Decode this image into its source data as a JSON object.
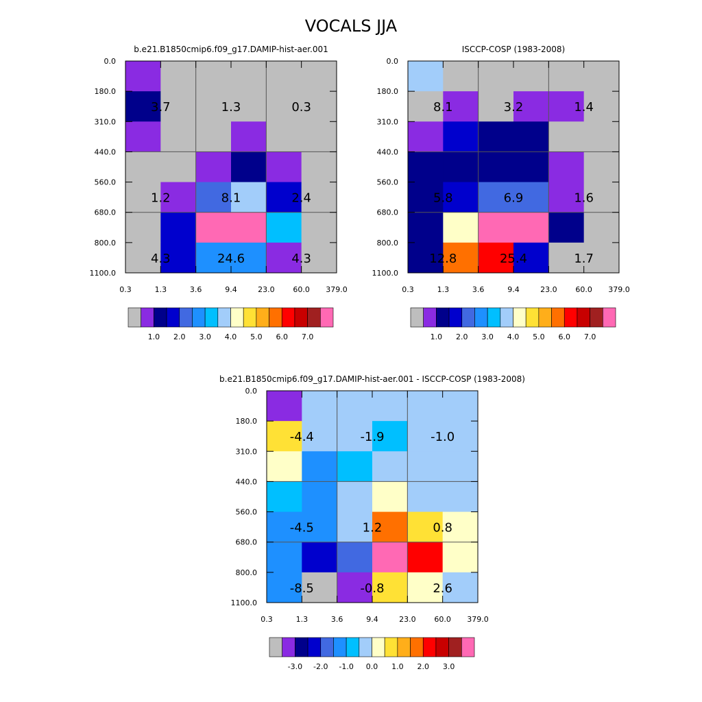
{
  "title": "VOCALS JJA",
  "x_tick_labels": [
    "0.3",
    "1.3",
    "3.6",
    "9.4",
    "23.0",
    "60.0",
    "379.0"
  ],
  "y_tick_labels": [
    "0.0",
    "180.0",
    "310.0",
    "440.0",
    "560.0",
    "680.0",
    "800.0",
    "1100.0"
  ],
  "palettes": {
    "abs": [
      "#bebebe",
      "#8a2be2",
      "#00008b",
      "#0000cd",
      "#4169e1",
      "#1e90ff",
      "#00bfff",
      "#a2cdfa",
      "#ffffc8",
      "#ffe135",
      "#ffae1a",
      "#ff7000",
      "#ff0000",
      "#c80000",
      "#a02020",
      "#ff69b4"
    ],
    "diff": [
      "#bebebe",
      "#8a2be2",
      "#00008b",
      "#0000cd",
      "#4169e1",
      "#1e90ff",
      "#00bfff",
      "#a2cdfa",
      "#ffffc8",
      "#ffe135",
      "#ffae1a",
      "#ff7000",
      "#ff0000",
      "#c80000",
      "#a02020",
      "#ff69b4"
    ]
  },
  "chart_data": [
    {
      "type": "heatmap",
      "title": "b.e21.B1850cmip6.f09_g17.DAMIP-hist-aer.001",
      "palette": "abs",
      "colorbar_labels": [
        "1.0",
        "2.0",
        "3.0",
        "4.0",
        "5.0",
        "6.0",
        "7.0"
      ],
      "cells": [
        [
          1,
          0,
          0,
          0,
          0,
          0
        ],
        [
          2,
          0,
          0,
          0,
          0,
          0
        ],
        [
          1,
          0,
          0,
          1,
          0,
          0
        ],
        [
          0,
          0,
          1,
          2,
          1,
          0
        ],
        [
          0,
          1,
          4,
          7,
          3,
          0
        ],
        [
          0,
          3,
          15,
          15,
          6,
          0
        ],
        [
          0,
          3,
          5,
          5,
          1,
          0
        ]
      ],
      "annotations": [
        {
          "row": 1,
          "col": 0,
          "text": "3.7"
        },
        {
          "row": 1,
          "col": 2,
          "text": "1.3"
        },
        {
          "row": 1,
          "col": 4,
          "text": "0.3"
        },
        {
          "row": 4,
          "col": 0,
          "text": "1.2"
        },
        {
          "row": 4,
          "col": 2,
          "text": "8.1"
        },
        {
          "row": 4,
          "col": 4,
          "text": "2.4"
        },
        {
          "row": 6,
          "col": 0,
          "text": "4.3"
        },
        {
          "row": 6,
          "col": 2,
          "text": "24.6"
        },
        {
          "row": 6,
          "col": 4,
          "text": "4.3"
        }
      ]
    },
    {
      "type": "heatmap",
      "title": "ISCCP-COSP (1983-2008)",
      "palette": "abs",
      "colorbar_labels": [
        "1.0",
        "2.0",
        "3.0",
        "4.0",
        "5.0",
        "6.0",
        "7.0"
      ],
      "cells": [
        [
          7,
          0,
          0,
          0,
          0,
          0
        ],
        [
          0,
          1,
          0,
          1,
          1,
          0
        ],
        [
          1,
          3,
          2,
          2,
          0,
          0
        ],
        [
          2,
          2,
          2,
          2,
          1,
          0
        ],
        [
          2,
          3,
          4,
          4,
          1,
          0
        ],
        [
          2,
          8,
          15,
          15,
          2,
          0
        ],
        [
          2,
          11,
          12,
          3,
          0,
          0
        ]
      ],
      "annotations": [
        {
          "row": 1,
          "col": 0,
          "text": "8.1"
        },
        {
          "row": 1,
          "col": 2,
          "text": "3.2"
        },
        {
          "row": 1,
          "col": 4,
          "text": "1.4"
        },
        {
          "row": 4,
          "col": 0,
          "text": "5.8"
        },
        {
          "row": 4,
          "col": 2,
          "text": "6.9"
        },
        {
          "row": 4,
          "col": 4,
          "text": "1.6"
        },
        {
          "row": 6,
          "col": 0,
          "text": "12.8"
        },
        {
          "row": 6,
          "col": 2,
          "text": "25.4"
        },
        {
          "row": 6,
          "col": 4,
          "text": "1.7"
        }
      ]
    },
    {
      "type": "heatmap",
      "title": "b.e21.B1850cmip6.f09_g17.DAMIP-hist-aer.001 - ISCCP-COSP (1983-2008)",
      "palette": "diff",
      "colorbar_labels": [
        "-3.0",
        "-2.0",
        "-1.0",
        "0.0",
        "1.0",
        "2.0",
        "3.0"
      ],
      "cells": [
        [
          1,
          7,
          7,
          7,
          7,
          7
        ],
        [
          9,
          7,
          7,
          6,
          7,
          7
        ],
        [
          8,
          5,
          6,
          7,
          7,
          7
        ],
        [
          6,
          5,
          7,
          8,
          7,
          7
        ],
        [
          5,
          5,
          7,
          11,
          9,
          8
        ],
        [
          5,
          3,
          4,
          15,
          12,
          8
        ],
        [
          5,
          0,
          1,
          9,
          8,
          7
        ]
      ],
      "annotations": [
        {
          "row": 1,
          "col": 0,
          "text": "-4.4"
        },
        {
          "row": 1,
          "col": 2,
          "text": "-1.9"
        },
        {
          "row": 1,
          "col": 4,
          "text": "-1.0"
        },
        {
          "row": 4,
          "col": 0,
          "text": "-4.5"
        },
        {
          "row": 4,
          "col": 2,
          "text": "1.2"
        },
        {
          "row": 4,
          "col": 4,
          "text": "0.8"
        },
        {
          "row": 6,
          "col": 0,
          "text": "-8.5"
        },
        {
          "row": 6,
          "col": 2,
          "text": "-0.8"
        },
        {
          "row": 6,
          "col": 4,
          "text": "2.6"
        }
      ]
    }
  ]
}
